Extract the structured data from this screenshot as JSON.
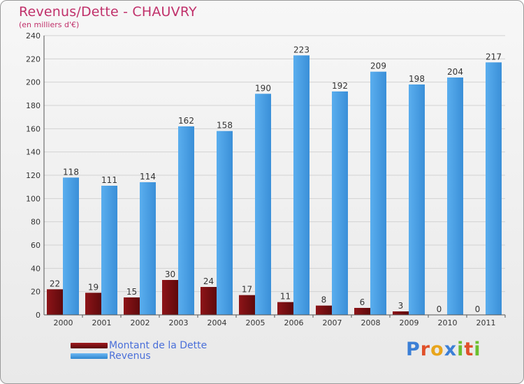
{
  "chart_data": {
    "type": "bar",
    "title": "Revenus/Dette - CHAUVRY",
    "subtitle": "(en milliers d'€)",
    "categories": [
      "2000",
      "2001",
      "2002",
      "2003",
      "2004",
      "2005",
      "2006",
      "2007",
      "2008",
      "2009",
      "2010",
      "2011"
    ],
    "series": [
      {
        "name": "Montant de la Dette",
        "values": [
          22,
          19,
          15,
          30,
          24,
          17,
          11,
          8,
          6,
          3,
          0,
          0
        ],
        "color": "#7a0f12"
      },
      {
        "name": "Revenus",
        "values": [
          118,
          111,
          114,
          162,
          158,
          190,
          223,
          192,
          209,
          198,
          204,
          217
        ],
        "color": "#4da3e8"
      }
    ],
    "ylim": [
      0,
      240
    ],
    "yticks": [
      0,
      20,
      40,
      60,
      80,
      100,
      120,
      140,
      160,
      180,
      200,
      220,
      240
    ],
    "grid": true,
    "legend": "bottom-left"
  },
  "logo": {
    "letters": [
      {
        "ch": "P",
        "color": "#3b7fd6"
      },
      {
        "ch": "r",
        "color": "#e0502a"
      },
      {
        "ch": "o",
        "color": "#e8a51c"
      },
      {
        "ch": "x",
        "color": "#3b7fd6"
      },
      {
        "ch": "i",
        "color": "#6bbf2e"
      },
      {
        "ch": "t",
        "color": "#e0502a"
      },
      {
        "ch": "i",
        "color": "#6bbf2e"
      }
    ]
  }
}
